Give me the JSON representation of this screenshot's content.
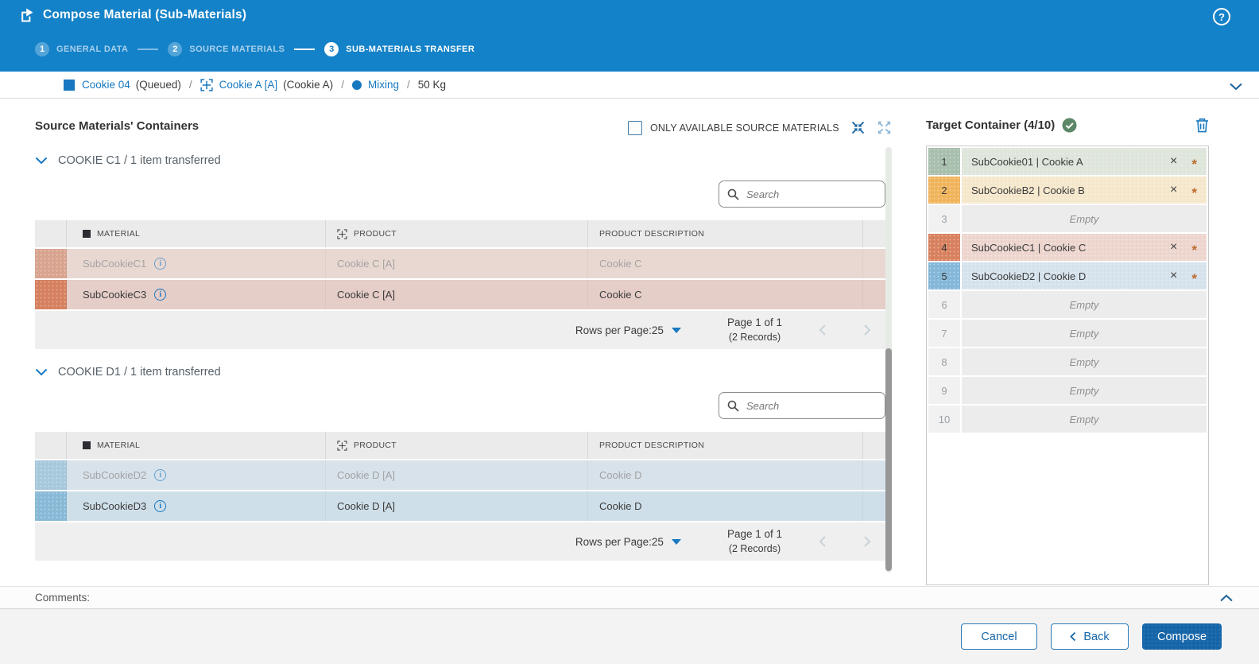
{
  "window": {
    "title": "Compose Material (Sub-Materials)"
  },
  "stepper": {
    "steps": [
      {
        "num": "1",
        "label": "GENERAL DATA"
      },
      {
        "num": "2",
        "label": "SOURCE MATERIALS"
      },
      {
        "num": "3",
        "label": "SUB-MATERIALS TRANSFER"
      }
    ],
    "active_step": 3
  },
  "breadcrumb": {
    "material_link": "Cookie 04",
    "material_status": "(Queued)",
    "product_link": "Cookie A [A]",
    "product_name": "(Cookie A)",
    "operation_link": "Mixing",
    "quantity": "50 Kg",
    "separator": "/"
  },
  "source_panel": {
    "title": "Source Materials' Containers",
    "only_available_label": "ONLY AVAILABLE SOURCE MATERIALS",
    "checkbox_checked": false,
    "search_placeholder": "Search",
    "groups": [
      {
        "header": "COOKIE C1 / 1 item transferred",
        "theme": "red",
        "columns": {
          "material": "MATERIAL",
          "product": "PRODUCT",
          "description": "PRODUCT DESCRIPTION"
        },
        "rows": [
          {
            "material": "SubCookieC1",
            "product": "Cookie C [A]",
            "description": "Cookie C",
            "transferred": true
          },
          {
            "material": "SubCookieC3",
            "product": "Cookie C [A]",
            "description": "Cookie C",
            "transferred": false
          }
        ],
        "pagination": {
          "rows_per_page_label": "Rows per Page:",
          "rows_per_page": "25",
          "page_label": "Page 1 of 1",
          "records_label": "(2 Records)"
        }
      },
      {
        "header": "COOKIE D1 / 1 item transferred",
        "theme": "blue",
        "columns": {
          "material": "MATERIAL",
          "product": "PRODUCT",
          "description": "PRODUCT DESCRIPTION"
        },
        "rows": [
          {
            "material": "SubCookieD2",
            "product": "Cookie D [A]",
            "description": "Cookie D",
            "transferred": true
          },
          {
            "material": "SubCookieD3",
            "product": "Cookie D [A]",
            "description": "Cookie D",
            "transferred": false
          }
        ],
        "pagination": {
          "rows_per_page_label": "Rows per Page:",
          "rows_per_page": "25",
          "page_label": "Page 1 of 1",
          "records_label": "(2 Records)"
        }
      }
    ]
  },
  "target_panel": {
    "title": "Target Container (4/10)",
    "remove_symbol": "×",
    "required_symbol": "*",
    "slots": [
      {
        "num": "1",
        "label": "SubCookie01 | Cookie A",
        "theme": "green",
        "filled": true
      },
      {
        "num": "2",
        "label": "SubCookieB2 | Cookie B",
        "theme": "orange",
        "filled": true
      },
      {
        "num": "3",
        "label": "Empty",
        "theme": "empty",
        "filled": false
      },
      {
        "num": "4",
        "label": "SubCookieC1 | Cookie C",
        "theme": "red",
        "filled": true
      },
      {
        "num": "5",
        "label": "SubCookieD2 | Cookie D",
        "theme": "blue",
        "filled": true
      },
      {
        "num": "6",
        "label": "Empty",
        "theme": "empty",
        "filled": false
      },
      {
        "num": "7",
        "label": "Empty",
        "theme": "empty",
        "filled": false
      },
      {
        "num": "8",
        "label": "Empty",
        "theme": "empty",
        "filled": false
      },
      {
        "num": "9",
        "label": "Empty",
        "theme": "empty",
        "filled": false
      },
      {
        "num": "10",
        "label": "Empty",
        "theme": "empty",
        "filled": false
      }
    ]
  },
  "comments": {
    "label": "Comments:"
  },
  "footer": {
    "cancel_label": "Cancel",
    "back_label": "Back",
    "compose_label": "Compose"
  },
  "icons": {
    "title": "transfer-arrow",
    "help": "question-circle",
    "material": "filled-square",
    "product": "crosshair-plus",
    "operation": "filled-circle",
    "collapse_all": "arrows-inward",
    "expand_all": "arrows-outward",
    "search": "magnifier",
    "info": "circled-i",
    "valid": "check-circle",
    "delete": "trash",
    "remove": "x-cross",
    "required": "asterisk"
  },
  "colors": {
    "header_blue": "#1482c8",
    "link_blue": "#1878c0",
    "compose_button": "#1565a8",
    "step_inactive": "#53a5d9",
    "row_red": "#e5cdc8",
    "row_red_indicator": "#d5805f",
    "row_blue": "#cfdfe9",
    "row_blue_indicator": "#88b9d6",
    "slot_green": "#a8bfad",
    "slot_orange": "#f0b45c",
    "slot_red": "#d8815f",
    "slot_blue": "#84b7d8",
    "check_green": "#5e8767",
    "asterisk_orange": "#bd6b2e"
  }
}
